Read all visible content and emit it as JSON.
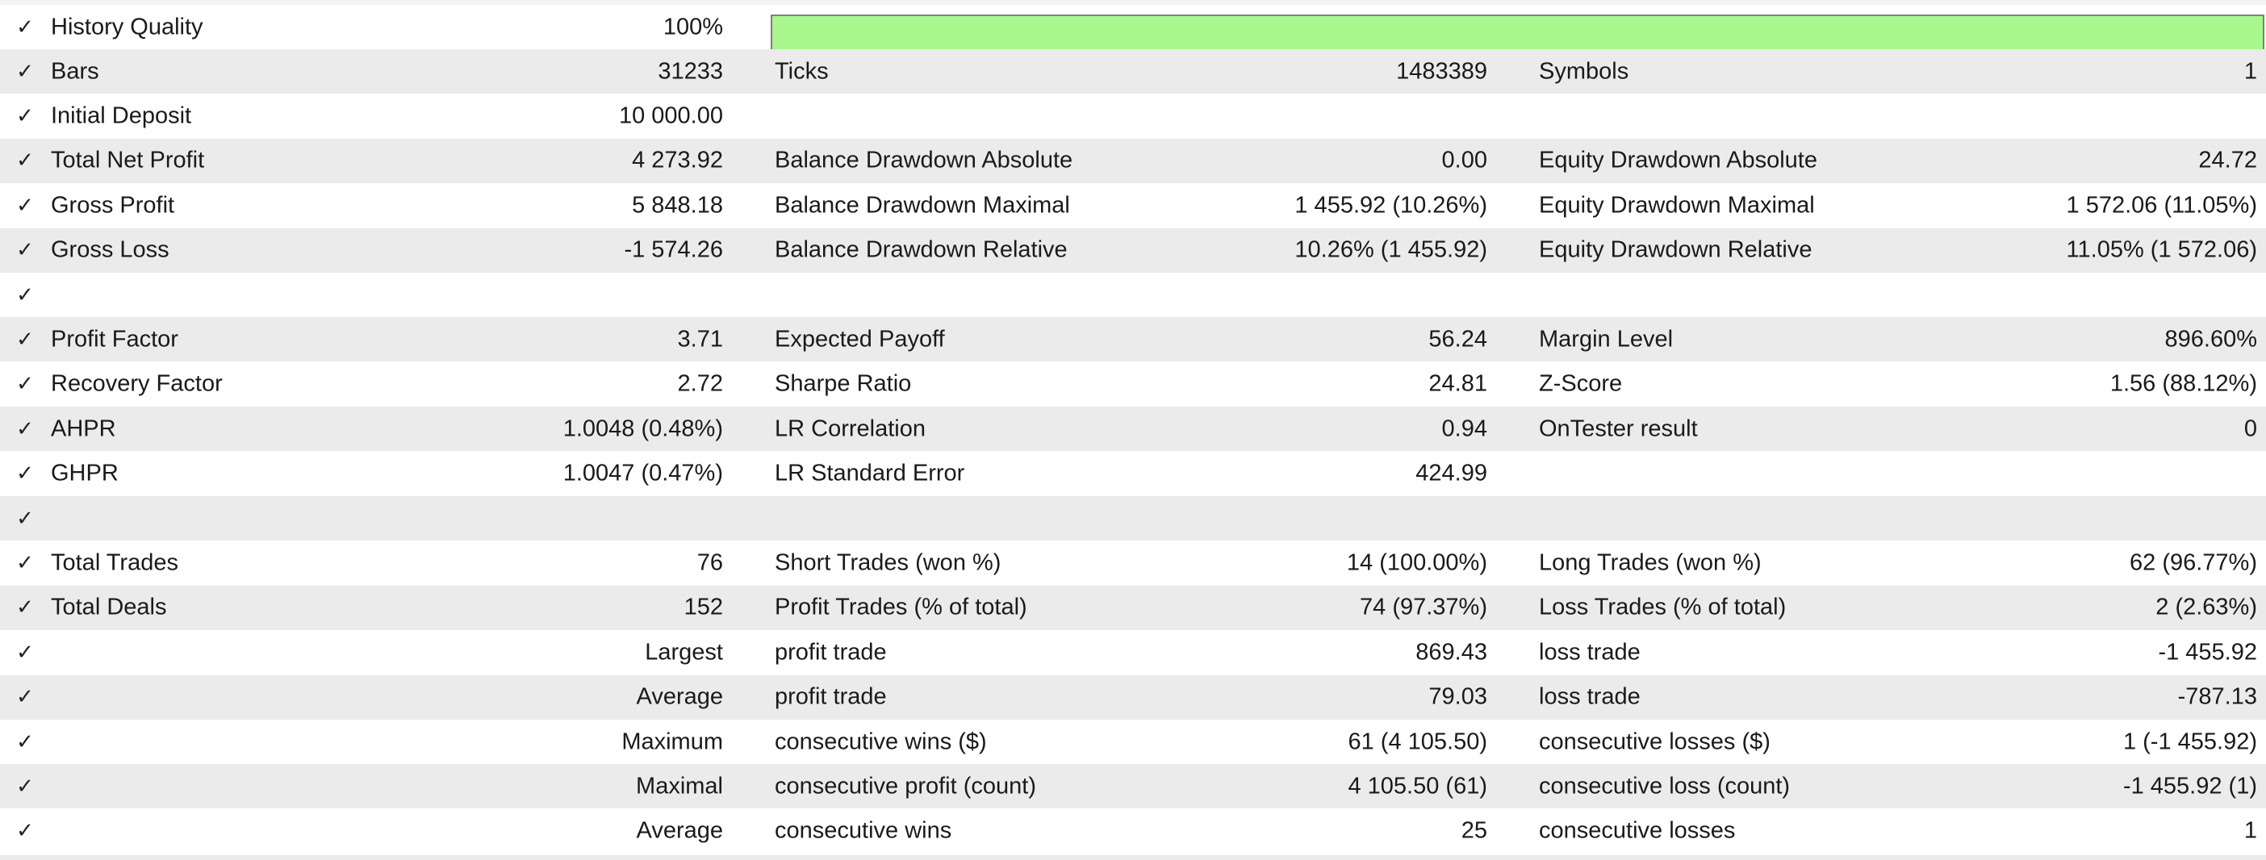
{
  "history_quality": {
    "label": "History Quality",
    "value": "100%",
    "progress": 1.0,
    "bar_color": "#a8f78c"
  },
  "rows": [
    {
      "l1": "Bars",
      "v1": "31233",
      "l2": "Ticks",
      "v2": "1483389",
      "l3": "Symbols",
      "v3": "1"
    },
    {
      "l1": "Initial Deposit",
      "v1": "10 000.00",
      "l2": "",
      "v2": "",
      "l3": "",
      "v3": ""
    },
    {
      "l1": "Total Net Profit",
      "v1": "4 273.92",
      "l2": "Balance Drawdown Absolute",
      "v2": "0.00",
      "l3": "Equity Drawdown Absolute",
      "v3": "24.72"
    },
    {
      "l1": "Gross Profit",
      "v1": "5 848.18",
      "l2": "Balance Drawdown Maximal",
      "v2": "1 455.92 (10.26%)",
      "l3": "Equity Drawdown Maximal",
      "v3": "1 572.06 (11.05%)"
    },
    {
      "l1": "Gross Loss",
      "v1": "-1 574.26",
      "l2": "Balance Drawdown Relative",
      "v2": "10.26% (1 455.92)",
      "l3": "Equity Drawdown Relative",
      "v3": "11.05% (1 572.06)"
    },
    {
      "l1": "",
      "v1": "",
      "l2": "",
      "v2": "",
      "l3": "",
      "v3": ""
    },
    {
      "l1": "Profit Factor",
      "v1": "3.71",
      "l2": "Expected Payoff",
      "v2": "56.24",
      "l3": "Margin Level",
      "v3": "896.60%"
    },
    {
      "l1": "Recovery Factor",
      "v1": "2.72",
      "l2": "Sharpe Ratio",
      "v2": "24.81",
      "l3": "Z-Score",
      "v3": "1.56 (88.12%)"
    },
    {
      "l1": "AHPR",
      "v1": "1.0048 (0.48%)",
      "l2": "LR Correlation",
      "v2": "0.94",
      "l3": "OnTester result",
      "v3": "0"
    },
    {
      "l1": "GHPR",
      "v1": "1.0047 (0.47%)",
      "l2": "LR Standard Error",
      "v2": "424.99",
      "l3": "",
      "v3": ""
    },
    {
      "l1": "",
      "v1": "",
      "l2": "",
      "v2": "",
      "l3": "",
      "v3": ""
    },
    {
      "l1": "Total Trades",
      "v1": "76",
      "l2": "Short Trades (won %)",
      "v2": "14 (100.00%)",
      "l3": "Long Trades (won %)",
      "v3": "62 (96.77%)"
    },
    {
      "l1": "Total Deals",
      "v1": "152",
      "l2": "Profit Trades (% of total)",
      "v2": "74 (97.37%)",
      "l3": "Loss Trades (% of total)",
      "v3": "2 (2.63%)"
    },
    {
      "l1": "",
      "v1": "Largest",
      "l2": "profit trade",
      "v2": "869.43",
      "l3": "loss trade",
      "v3": "-1 455.92"
    },
    {
      "l1": "",
      "v1": "Average",
      "l2": "profit trade",
      "v2": "79.03",
      "l3": "loss trade",
      "v3": "-787.13"
    },
    {
      "l1": "",
      "v1": "Maximum",
      "l2": "consecutive wins ($)",
      "v2": "61 (4 105.50)",
      "l3": "consecutive losses ($)",
      "v3": "1 (-1 455.92)"
    },
    {
      "l1": "",
      "v1": "Maximal",
      "l2": "consecutive profit (count)",
      "v2": "4 105.50 (61)",
      "l3": "consecutive loss (count)",
      "v3": "-1 455.92 (1)"
    },
    {
      "l1": "",
      "v1": "Average",
      "l2": "consecutive wins",
      "v2": "25",
      "l3": "consecutive losses",
      "v3": "1"
    }
  ],
  "icons": {
    "check": "checkmark-icon"
  }
}
